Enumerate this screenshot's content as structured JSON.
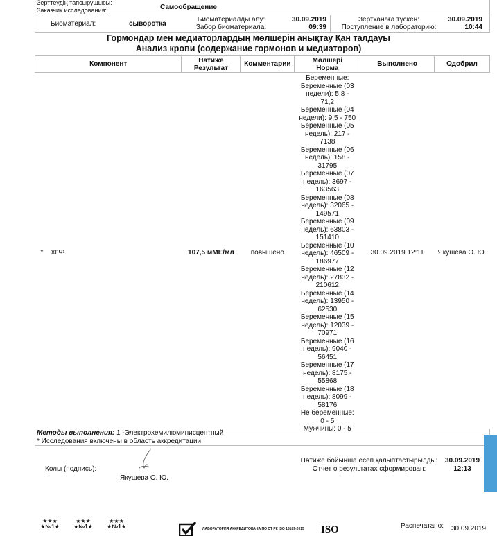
{
  "customer": {
    "label_kz": "Зерттеудің тапсырушысы:",
    "label_ru": "Заказчик исследования:",
    "value": "Самообращение"
  },
  "sample": {
    "label": "Биоматериал:",
    "value": "сыворотка",
    "collected_kz": "Биоматериалды алу:",
    "collected_ru": "Забор биоматериала:",
    "collected_date": "30.09.2019",
    "collected_time": "09:39",
    "received_kz": "Зертханаға түскен:",
    "received_ru": "Поступление в лабораторию:",
    "received_date": "30.09.2019",
    "received_time": "10:44"
  },
  "title_kz": "Гормондар мен медиаторлардың мөлшерін анықтау Қан  талдауы",
  "title_ru": "Анализ крови (содержание гормонов и медиаторов)",
  "table": {
    "headers": [
      "Компонент",
      "Натиже\nРезультат",
      "Комментарии",
      "Мөлшері\nНорма",
      "Выполнено",
      "Одобрил"
    ],
    "rows": [
      {
        "mark": "*",
        "component": "ХГЧ¹",
        "result": "107,5 мМЕ/мл",
        "comment": "повышено",
        "norm": [
          "Беременные:",
          "Беременные (03 недели): 5,8 - 71,2",
          "Беременные (04 недели): 9,5 - 750",
          "Беременные (05 недель): 217 - 7138",
          "Беременные (06 недель): 158 - 31795",
          "Беременные (07 недель): 3697 - 163563",
          "Беременные (08 недель): 32065 - 149571",
          "Беременные (09 недель): 63803 - 151410",
          "Беременные (10 недель): 46509 - 186977",
          "Беременные (12 недель): 27832 - 210612",
          "Беременные (14 недель): 13950 - 62530",
          "Беременные (15 недель): 12039 - 70971",
          "Беременные (16 недель): 9040 - 56451",
          "Беременные (17 недель): 8175 - 55868",
          "Беременные (18 недель): 8099 - 58176",
          "Не беременные: 0 - 5",
          "Мужчины: 0 - 5"
        ],
        "done": "30.09.2019 12:11",
        "approved": "Якушева О. Ю."
      }
    ]
  },
  "methods": {
    "label": "Методы выполнения:",
    "value": " 1 -Электрохемилюминисцентный",
    "note": "* Исследования включены в область аккредитации"
  },
  "signature": {
    "label": "Қолы (подпись):",
    "name": "Якушева О. Ю."
  },
  "report": {
    "label_kz": "Нәтиже бойынша есеп қалыптастырылды:",
    "label_ru": "Отчет о результатах сформирован:",
    "date": "30.09.2019",
    "time": "12:13"
  },
  "footer": {
    "accreditation": "ЛАБОРАТОРИЯ АККРЕДИТОВАНА ПО СТ РК ISO 15189-2015",
    "iso": "ISO",
    "printed_label": "Распечатано:",
    "printed_date": "30.09.2019",
    "badge": "№1"
  },
  "colors": {
    "accent_bar": "#4a9fd8",
    "border": "#bbbbbb"
  }
}
